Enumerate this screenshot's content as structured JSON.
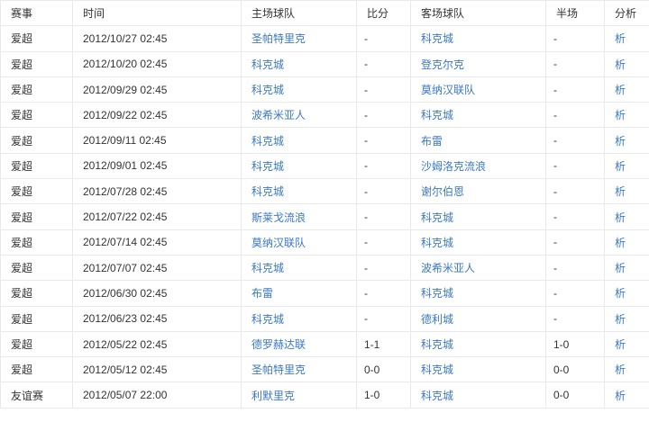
{
  "colors": {
    "link_blue": "#3a78c3",
    "text": "#333333",
    "border": "#e9e9e9",
    "background": "#ffffff"
  },
  "table": {
    "columns": [
      {
        "key": "league",
        "label": "赛事"
      },
      {
        "key": "time",
        "label": "时间"
      },
      {
        "key": "home",
        "label": "主场球队"
      },
      {
        "key": "score",
        "label": "比分"
      },
      {
        "key": "away",
        "label": "客场球队"
      },
      {
        "key": "half",
        "label": "半场"
      },
      {
        "key": "analysis",
        "label": "分析"
      }
    ],
    "rows": [
      {
        "league": "爱超",
        "time": "2012/10/27 02:45",
        "home": "圣帕特里克",
        "score": "-",
        "away": "科克城",
        "half": "-",
        "analysis": "析"
      },
      {
        "league": "爱超",
        "time": "2012/10/20 02:45",
        "home": "科克城",
        "score": "-",
        "away": "登克尔克",
        "half": "-",
        "analysis": "析"
      },
      {
        "league": "爱超",
        "time": "2012/09/29 02:45",
        "home": "科克城",
        "score": "-",
        "away": "莫纳汉联队",
        "half": "-",
        "analysis": "析"
      },
      {
        "league": "爱超",
        "time": "2012/09/22 02:45",
        "home": "波希米亚人",
        "score": "-",
        "away": "科克城",
        "half": "-",
        "analysis": "析"
      },
      {
        "league": "爱超",
        "time": "2012/09/11 02:45",
        "home": "科克城",
        "score": "-",
        "away": "布雷",
        "half": "-",
        "analysis": "析"
      },
      {
        "league": "爱超",
        "time": "2012/09/01 02:45",
        "home": "科克城",
        "score": "-",
        "away": "沙姆洛克流浪",
        "half": "-",
        "analysis": "析"
      },
      {
        "league": "爱超",
        "time": "2012/07/28 02:45",
        "home": "科克城",
        "score": "-",
        "away": "谢尔伯恩",
        "half": "-",
        "analysis": "析"
      },
      {
        "league": "爱超",
        "time": "2012/07/22 02:45",
        "home": "斯莱戈流浪",
        "score": "-",
        "away": "科克城",
        "half": "-",
        "analysis": "析"
      },
      {
        "league": "爱超",
        "time": "2012/07/14 02:45",
        "home": "莫纳汉联队",
        "score": "-",
        "away": "科克城",
        "half": "-",
        "analysis": "析"
      },
      {
        "league": "爱超",
        "time": "2012/07/07 02:45",
        "home": "科克城",
        "score": "-",
        "away": "波希米亚人",
        "half": "-",
        "analysis": "析"
      },
      {
        "league": "爱超",
        "time": "2012/06/30 02:45",
        "home": "布雷",
        "score": "-",
        "away": "科克城",
        "half": "-",
        "analysis": "析"
      },
      {
        "league": "爱超",
        "time": "2012/06/23 02:45",
        "home": "科克城",
        "score": "-",
        "away": "德利城",
        "half": "-",
        "analysis": "析"
      },
      {
        "league": "爱超",
        "time": "2012/05/22 02:45",
        "home": "德罗赫达联",
        "score": "1-1",
        "away": "科克城",
        "half": "1-0",
        "analysis": "析"
      },
      {
        "league": "爱超",
        "time": "2012/05/12 02:45",
        "home": "圣帕特里克",
        "score": "0-0",
        "away": "科克城",
        "half": "0-0",
        "analysis": "析"
      },
      {
        "league": "友谊赛",
        "time": "2012/05/07 22:00",
        "home": "利默里克",
        "score": "1-0",
        "away": "科克城",
        "half": "0-0",
        "analysis": "析"
      }
    ]
  }
}
